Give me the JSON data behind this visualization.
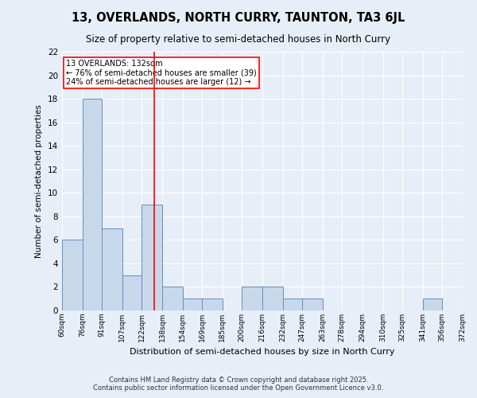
{
  "title1": "13, OVERLANDS, NORTH CURRY, TAUNTON, TA3 6JL",
  "title2": "Size of property relative to semi-detached houses in North Curry",
  "xlabel": "Distribution of semi-detached houses by size in North Curry",
  "ylabel": "Number of semi-detached properties",
  "bins": [
    60,
    76,
    91,
    107,
    122,
    138,
    154,
    169,
    185,
    200,
    216,
    232,
    247,
    263,
    278,
    294,
    310,
    325,
    341,
    356,
    372
  ],
  "counts": [
    6,
    18,
    7,
    3,
    9,
    2,
    1,
    1,
    0,
    2,
    2,
    1,
    1,
    0,
    0,
    0,
    0,
    0,
    1,
    0
  ],
  "bar_color": "#c8d8eb",
  "bar_edge_color": "#6090c0",
  "vline_x": 132,
  "vline_color": "red",
  "annotation_title": "13 OVERLANDS: 132sqm",
  "annotation_line1": "← 76% of semi-detached houses are smaller (39)",
  "annotation_line2": "24% of semi-detached houses are larger (12) →",
  "annotation_box_color": "white",
  "annotation_box_edge": "red",
  "ylim": [
    0,
    22
  ],
  "yticks": [
    0,
    2,
    4,
    6,
    8,
    10,
    12,
    14,
    16,
    18,
    20,
    22
  ],
  "bg_color": "#e8eef8",
  "grid_color": "white",
  "footer1": "Contains HM Land Registry data © Crown copyright and database right 2025.",
  "footer2": "Contains public sector information licensed under the Open Government Licence v3.0."
}
